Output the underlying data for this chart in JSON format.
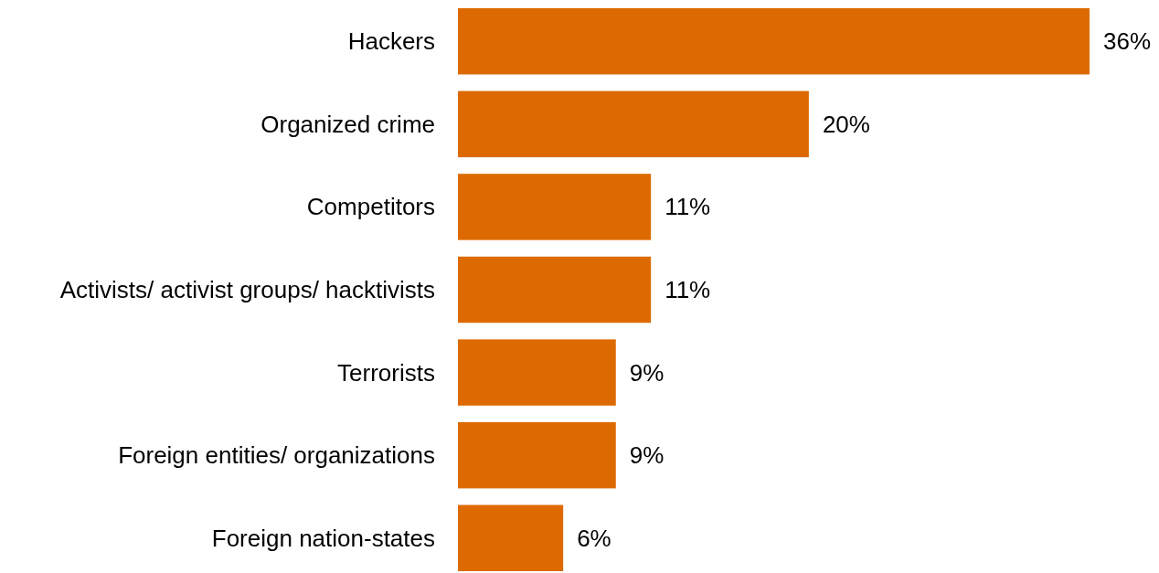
{
  "chart_data": {
    "type": "bar",
    "orientation": "horizontal",
    "categories": [
      "Hackers",
      "Organized crime",
      "Competitors",
      "Activists/ activist groups/ hacktivists",
      "Terrorists",
      "Foreign entities/ organizations",
      "Foreign nation-states"
    ],
    "values": [
      36,
      20,
      11,
      11,
      9,
      9,
      6
    ],
    "color": "#dd6a00",
    "value_labels": [
      "36%",
      "20%",
      "11%",
      "11%",
      "9%",
      "9%",
      "6%"
    ]
  }
}
